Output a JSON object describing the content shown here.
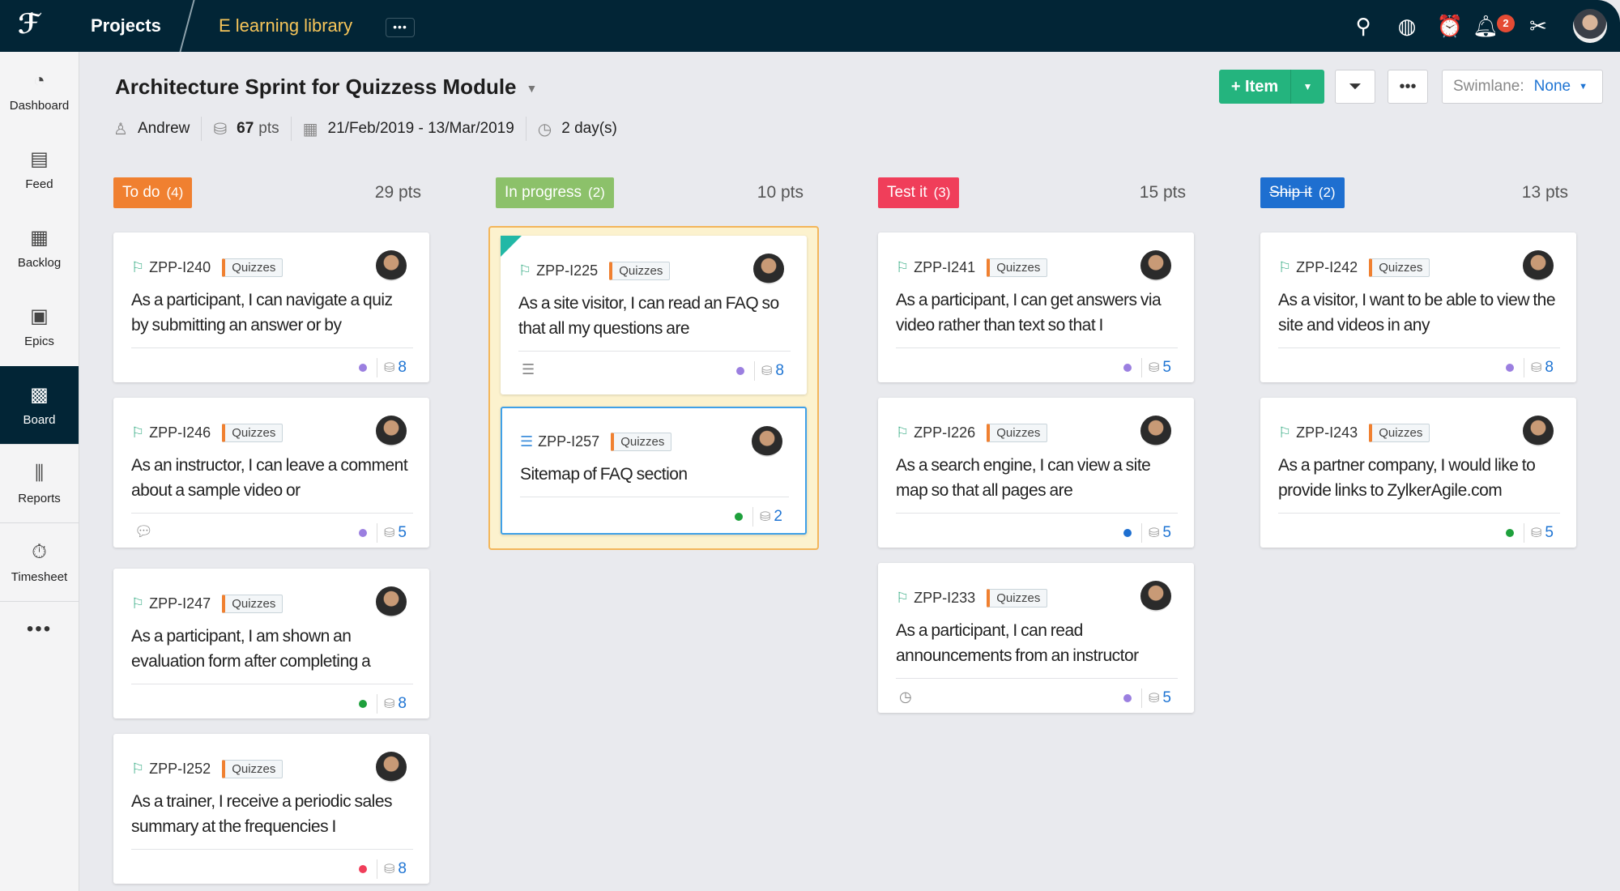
{
  "topbar": {
    "logo": "ZylkerAgile logo",
    "projects": "Projects",
    "project_name": "E learning library",
    "more": "•••",
    "notification_count": "2",
    "icons": [
      "search-icon",
      "globe-icon",
      "alarm-clock-icon",
      "bell-icon",
      "tools-icon"
    ]
  },
  "sidebar": {
    "items": [
      {
        "label": "Dashboard",
        "icon": "◔"
      },
      {
        "label": "Feed",
        "icon": "▤"
      },
      {
        "label": "Backlog",
        "icon": "▦"
      },
      {
        "label": "Epics",
        "icon": "▣"
      },
      {
        "label": "Board",
        "icon": "▩",
        "active": true
      },
      {
        "label": "Reports",
        "icon": "⫼"
      },
      {
        "label": "Timesheet",
        "icon": "⏱"
      }
    ],
    "more": "•••"
  },
  "sprint": {
    "title": "Architecture Sprint for Quizzess Module",
    "owner": "Andrew",
    "points": "67",
    "points_unit": "pts",
    "dates": "21/Feb/2019 - 13/Mar/2019",
    "duration": "2 day(s)"
  },
  "toolbar": {
    "add_item": "+ Item",
    "more": "•••",
    "swimlane_label": "Swimlane:",
    "swimlane_value": "None"
  },
  "colors": {
    "todo": "#f08030",
    "inprogress": "#8cc16a",
    "testit": "#f03e5a",
    "shipit": "#1e6fd0",
    "accent": "#24b47e"
  },
  "columns": [
    {
      "name": "To do",
      "count": "(4)",
      "pts": "29 pts",
      "cards": [
        {
          "id": "ZPP-I240",
          "tag": "Quizzes",
          "text": "As a participant, I can navigate a quiz by submitting an answer or by",
          "points": "8",
          "dot": "#9b7fe0"
        },
        {
          "id": "ZPP-I246",
          "tag": "Quizzes",
          "text": "As an instructor, I can leave a comment about a sample video or",
          "points": "5",
          "dot": "#9b7fe0",
          "footer_icon": "comment-icon"
        },
        {
          "id": "ZPP-I247",
          "tag": "Quizzes",
          "text": "As a participant, I am shown an evaluation form after completing a",
          "points": "8",
          "dot": "#1ea03c"
        },
        {
          "id": "ZPP-I252",
          "tag": "Quizzes",
          "text": "As a trainer, I receive a periodic sales summary at the frequencies I",
          "points": "8",
          "dot": "#f03e5a"
        }
      ]
    },
    {
      "name": "In progress",
      "count": "(2)",
      "pts": "10 pts",
      "cards": [
        {
          "id": "ZPP-I225",
          "tag": "Quizzes",
          "text": "As a site visitor, I can read an FAQ so that all my questions are",
          "points": "8",
          "dot": "#9b7fe0",
          "footer_icon": "subtasks-icon"
        },
        {
          "id": "ZPP-I257",
          "tag": "Quizzes",
          "text": "Sitemap of FAQ section",
          "points": "2",
          "dot": "#1ea03c"
        }
      ]
    },
    {
      "name": "Test it",
      "count": "(3)",
      "pts": "15 pts",
      "cards": [
        {
          "id": "ZPP-I241",
          "tag": "Quizzes",
          "text": "As a participant, I can get answers via video rather than text so that I",
          "points": "5",
          "dot": "#9b7fe0"
        },
        {
          "id": "ZPP-I226",
          "tag": "Quizzes",
          "text": "As a search engine, I can view a site map so that all pages are",
          "points": "5",
          "dot": "#1e6fd0"
        },
        {
          "id": "ZPP-I233",
          "tag": "Quizzes",
          "text": "As a participant, I can read announcements from an instructor",
          "points": "5",
          "dot": "#9b7fe0",
          "footer_icon": "timer-icon"
        }
      ]
    },
    {
      "name": "Ship it",
      "count": "(2)",
      "pts": "13 pts",
      "cards": [
        {
          "id": "ZPP-I242",
          "tag": "Quizzes",
          "text": "As a visitor, I want to be able to view the site and videos in any",
          "points": "8",
          "dot": "#9b7fe0"
        },
        {
          "id": "ZPP-I243",
          "tag": "Quizzes",
          "text": "As a partner company, I would like to provide links to ZylkerAgile.com",
          "points": "5",
          "dot": "#1ea03c"
        }
      ]
    }
  ]
}
